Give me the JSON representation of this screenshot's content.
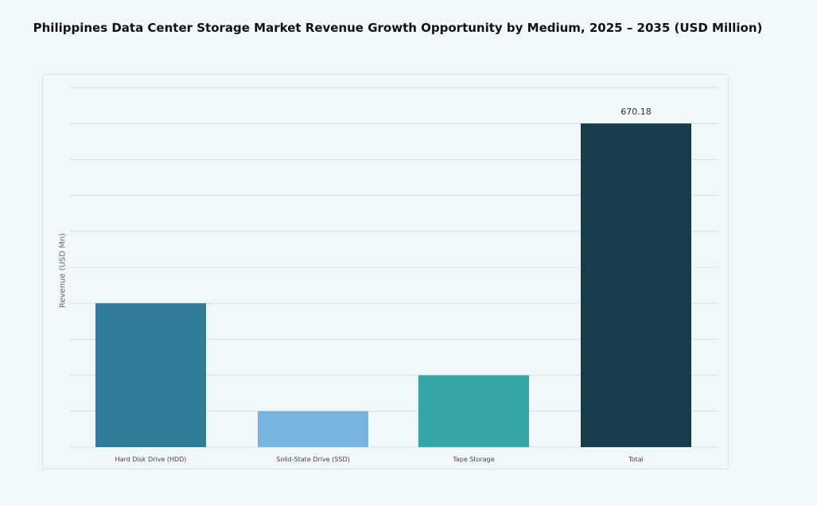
{
  "chart_data": {
    "type": "bar",
    "title": "Philippines Data Center Storage Market Revenue Growth Opportunity by Medium, 2025 – 2035 (USD Million)",
    "xlabel": "",
    "ylabel": "Revenue (USD Mn)",
    "categories": [
      "Hard Disk Drive (HDD)",
      "Solid-State Drive (SSD)",
      "Tape Storage",
      "Total"
    ],
    "values": [
      297.9,
      74.5,
      148.9,
      670.18
    ],
    "data_labels": [
      "",
      "",
      "",
      "670.18"
    ],
    "colors": [
      "#2e7b9a",
      "#7ab5e2",
      "#35a5a8",
      "#183d4a"
    ],
    "ylim": [
      0,
      744.6
    ],
    "grid": true,
    "legend": "none"
  }
}
